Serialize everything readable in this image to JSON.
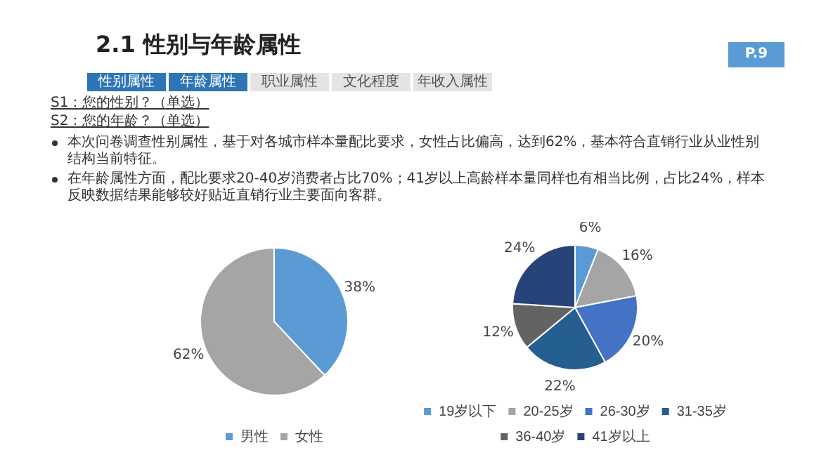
{
  "chart_data": [
    {
      "type": "pie",
      "title": "2.1 性别与年龄属性",
      "categories": [
        "男性",
        "女性"
      ],
      "values": [
        38,
        62
      ],
      "colors": [
        "#5b9bd5",
        "#a5a5a5"
      ],
      "value_labels": [
        "38%",
        "62%"
      ],
      "legend": "bottom",
      "annotations": [
        "P.9",
        "性别属性",
        "年龄属性",
        "职业属性",
        "文化程度",
        "年收入属性",
        "S1：您的性别？（单选）",
        "S2：您的年龄？（单选）",
        "本次问卷调查性别属性，基于对各城市样本量配比要求，女性占比偏高，达到62%，基本符合直销行业从业性别结构当前特征。",
        "在年龄属性方面，配比要求20-40岁消费者占比70%；41岁以上高龄样本量同样也有相当比例，占比24%，样本反映数据结果能够较好贴近直销行业主要面向客群。"
      ]
    },
    {
      "type": "pie",
      "categories": [
        "19岁以下",
        "20-25岁",
        "26-30岁",
        "31-35岁",
        "36-40岁",
        "41岁以上"
      ],
      "values": [
        6,
        16,
        20,
        22,
        12,
        24
      ],
      "colors": [
        "#5b9bd5",
        "#a5a5a5",
        "#4472c4",
        "#255e91",
        "#636363",
        "#264478"
      ],
      "value_labels": [
        "6%",
        "16%",
        "20%",
        "22%",
        "12%",
        "24%"
      ],
      "legend": "bottom"
    }
  ]
}
